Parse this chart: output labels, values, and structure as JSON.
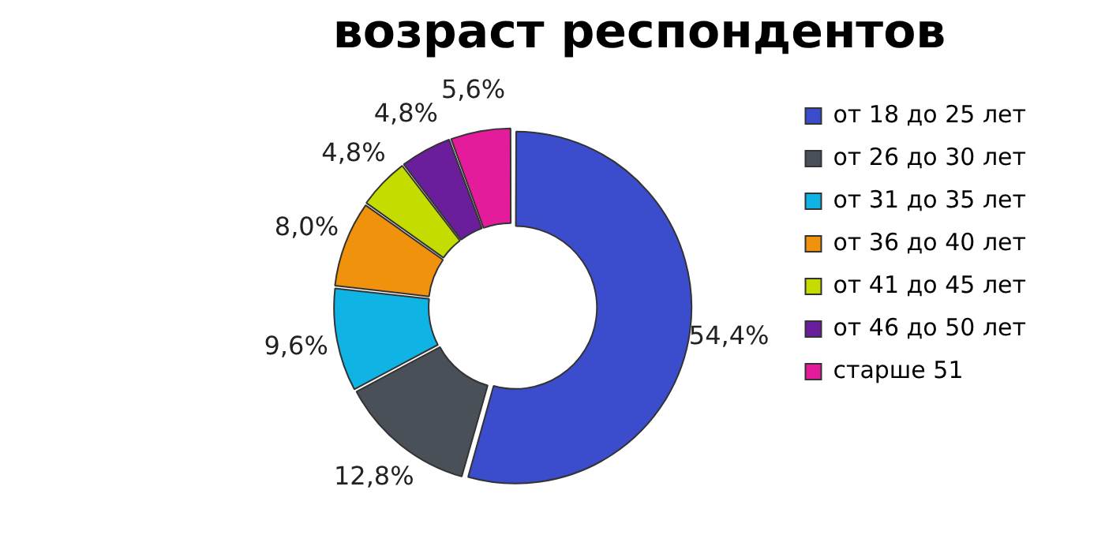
{
  "chart_data": {
    "type": "donut",
    "title": "возраст респондентов",
    "categories": [
      "от 18 до 25 лет",
      "от 26 до 30 лет",
      "от 31 до 35 лет",
      "от 36 до 40 лет",
      "от 41 до 45 лет",
      "от 46 до 50 лет",
      "старше 51"
    ],
    "values": [
      54.4,
      12.8,
      9.6,
      8.0,
      4.8,
      4.8,
      5.6
    ],
    "colors": [
      "#3b4ccc",
      "#4a5058",
      "#10b4e4",
      "#f0920c",
      "#c4dc00",
      "#6a1e9c",
      "#e41c9c"
    ],
    "value_labels": [
      "54,4%",
      "12,8%",
      "9,6%",
      "8,0%",
      "4,8%",
      "4,8%",
      "5,6%"
    ],
    "legend": "right"
  }
}
